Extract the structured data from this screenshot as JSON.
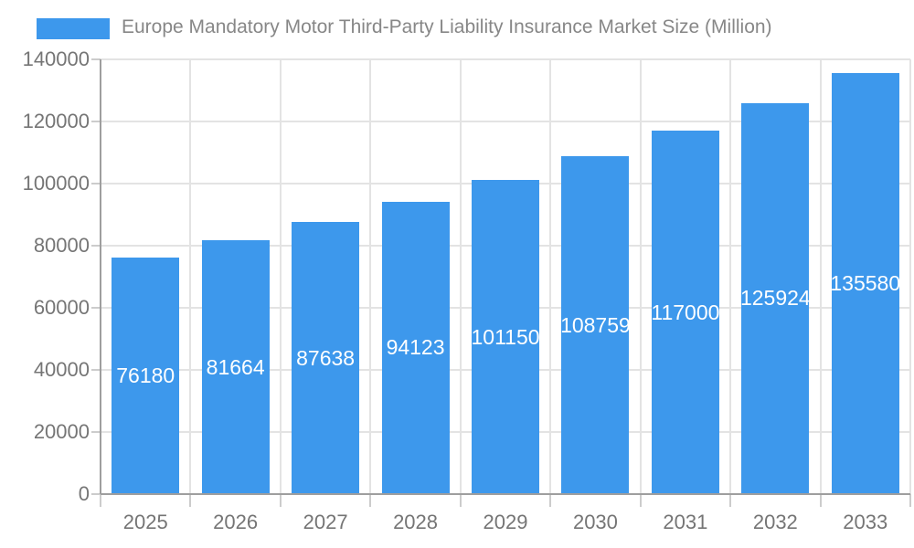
{
  "chart_data": {
    "type": "bar",
    "title": "Europe Mandatory Motor Third-Party Liability Insurance Market Size (Million)",
    "categories": [
      "2025",
      "2026",
      "2027",
      "2028",
      "2029",
      "2030",
      "2031",
      "2032",
      "2033"
    ],
    "values": [
      76180,
      81664,
      87638,
      94123,
      101150,
      108759,
      117000,
      125924,
      135580
    ],
    "series_name": "Europe Mandatory Motor Third-Party Liability Insurance Market Size (Million)",
    "xlabel": "",
    "ylabel": "",
    "ylim": [
      0,
      140000
    ],
    "y_ticks": [
      0,
      20000,
      40000,
      60000,
      80000,
      100000,
      120000,
      140000
    ],
    "grid": true,
    "legend_position": "top-left",
    "value_labels_inside_bars": true,
    "colors": {
      "bar": "#3D98EC",
      "bar_label_text": "#FFFFFF",
      "title_text": "#878787",
      "axis_text": "#757575",
      "gridline": "#E3E3E3",
      "axis_line": "#9E9E9E",
      "tick": "#CCCCCC",
      "background": "#FFFFFF"
    }
  }
}
